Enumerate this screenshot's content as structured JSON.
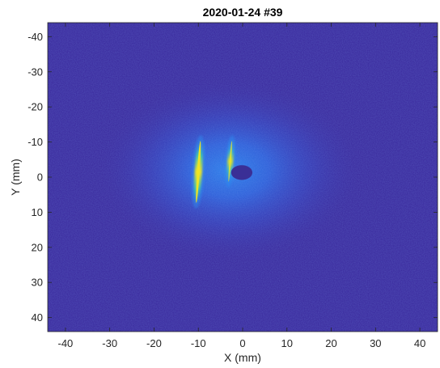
{
  "chart_data": {
    "type": "heatmap",
    "title": "2020-01-24 #39",
    "xlabel": "X (mm)",
    "ylabel": "Y (mm)",
    "xlim": [
      -44,
      44
    ],
    "ylim": [
      -44,
      44
    ],
    "y_direction": "reversed",
    "x_ticks": [
      -40,
      -30,
      -20,
      -10,
      0,
      10,
      20,
      30,
      40
    ],
    "y_ticks": [
      -40,
      -30,
      -20,
      -10,
      0,
      10,
      20,
      30,
      40
    ],
    "x_tick_labels": [
      "-40",
      "-30",
      "-20",
      "-10",
      "0",
      "10",
      "20",
      "30",
      "40"
    ],
    "y_tick_labels": [
      "-40",
      "-30",
      "-20",
      "-10",
      "0",
      "10",
      "20",
      "30",
      "40"
    ],
    "grid": false,
    "colormap": "parula",
    "colors": {
      "background": "#3d2ea0",
      "glow_mid": "#2f63e6",
      "glow_inner": "#2f86ee",
      "stripe_core": "#f1e521",
      "stripe_edge": "#44c9a8",
      "hole": "#3a2f96"
    },
    "features": [
      {
        "kind": "diffuse-glow",
        "center": [
          -3,
          -2
        ],
        "radius": [
          30,
          26
        ]
      },
      {
        "kind": "bright-stripe",
        "from": [
          -10.5,
          8
        ],
        "to": [
          -9.5,
          -11
        ],
        "peak": "high"
      },
      {
        "kind": "bright-stripe",
        "from": [
          -3.2,
          2
        ],
        "to": [
          -2.4,
          -11
        ],
        "peak": "medium"
      },
      {
        "kind": "dark-disc",
        "center": [
          -0.2,
          -1.3
        ],
        "radius": [
          2.4,
          2.1
        ]
      }
    ]
  }
}
